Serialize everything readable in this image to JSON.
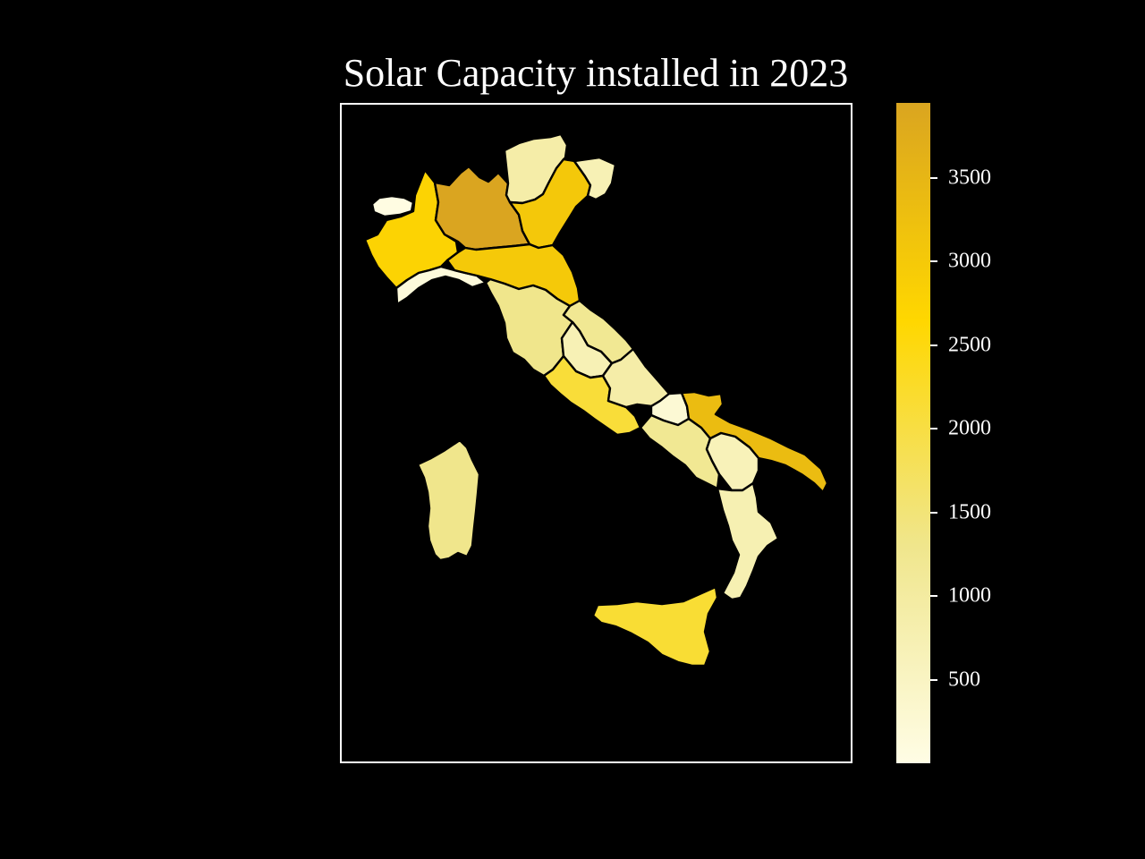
{
  "title": "Solar Capacity installed in 2023",
  "colorbar": {
    "min": 0,
    "max": 3950,
    "ticks": [
      "500",
      "1000",
      "1500",
      "2000",
      "2500",
      "3000",
      "3500"
    ],
    "colors": [
      "#FFFDE5",
      "#F0E68C",
      "#FFD700",
      "#DAA520"
    ]
  },
  "regions": [
    {
      "name": "Valle d'Aosta",
      "value": 40
    },
    {
      "name": "Piemonte",
      "value": 2750
    },
    {
      "name": "Lombardia",
      "value": 3950
    },
    {
      "name": "Trentino-Alto Adige",
      "value": 900
    },
    {
      "name": "Veneto",
      "value": 3050
    },
    {
      "name": "Friuli-Venezia Giulia",
      "value": 700
    },
    {
      "name": "Liguria",
      "value": 150
    },
    {
      "name": "Emilia-Romagna",
      "value": 3000
    },
    {
      "name": "Toscana",
      "value": 1300
    },
    {
      "name": "Marche",
      "value": 1200
    },
    {
      "name": "Umbria",
      "value": 700
    },
    {
      "name": "Lazio",
      "value": 2100
    },
    {
      "name": "Abruzzo",
      "value": 900
    },
    {
      "name": "Molise",
      "value": 250
    },
    {
      "name": "Campania",
      "value": 1200
    },
    {
      "name": "Puglia",
      "value": 3350
    },
    {
      "name": "Basilicata",
      "value": 650
    },
    {
      "name": "Calabria",
      "value": 750
    },
    {
      "name": "Sicilia",
      "value": 2150
    },
    {
      "name": "Sardegna",
      "value": 1300
    }
  ]
}
